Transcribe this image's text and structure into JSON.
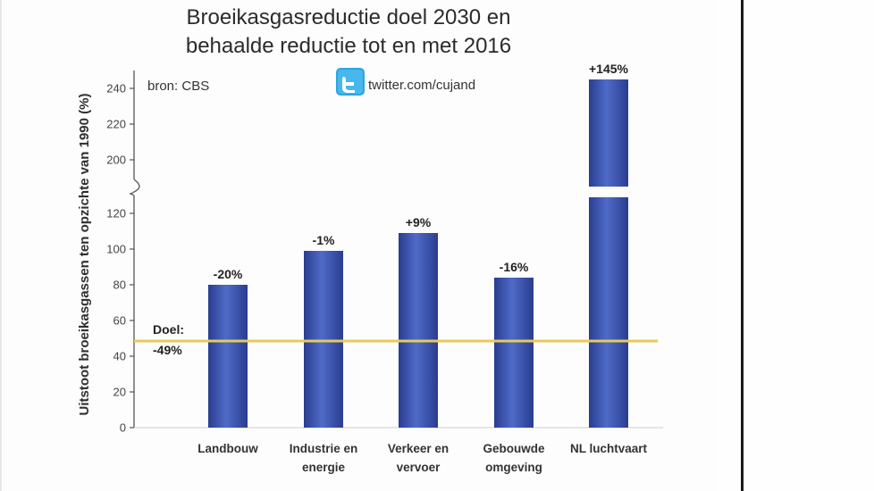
{
  "chart_data": {
    "type": "bar",
    "title_lines": [
      "Broeikasgasreductie doel 2030 en",
      "behaalde reductie tot en met 2016"
    ],
    "source": "bron:  CBS",
    "credit": "twitter.com/cujand",
    "ylabel": "Uitstoot broeikasgassen ten opzichte van 1990 (%)",
    "yticks_lower": [
      0,
      20,
      40,
      60,
      80,
      100,
      120
    ],
    "yticks_upper": [
      200,
      220,
      240
    ],
    "axis_break": [
      130,
      190
    ],
    "categories": [
      [
        "Landbouw"
      ],
      [
        "Industrie en",
        "energie"
      ],
      [
        "Verkeer en",
        "vervoer"
      ],
      [
        "Gebouwde",
        "omgeving"
      ],
      [
        "NL luchtvaart"
      ]
    ],
    "values": [
      80,
      99,
      109,
      84,
      245
    ],
    "data_labels": [
      "-20%",
      "-1%",
      "+9%",
      "-16%",
      "+145%"
    ],
    "goal": {
      "value": 51,
      "label_lines": [
        "Doel:",
        "-49%"
      ]
    },
    "colors": {
      "bar_dark": "#2a3d8f",
      "bar_light": "#4f6bc8",
      "goal_line": "#e8c95a",
      "axis": "#555555"
    }
  }
}
